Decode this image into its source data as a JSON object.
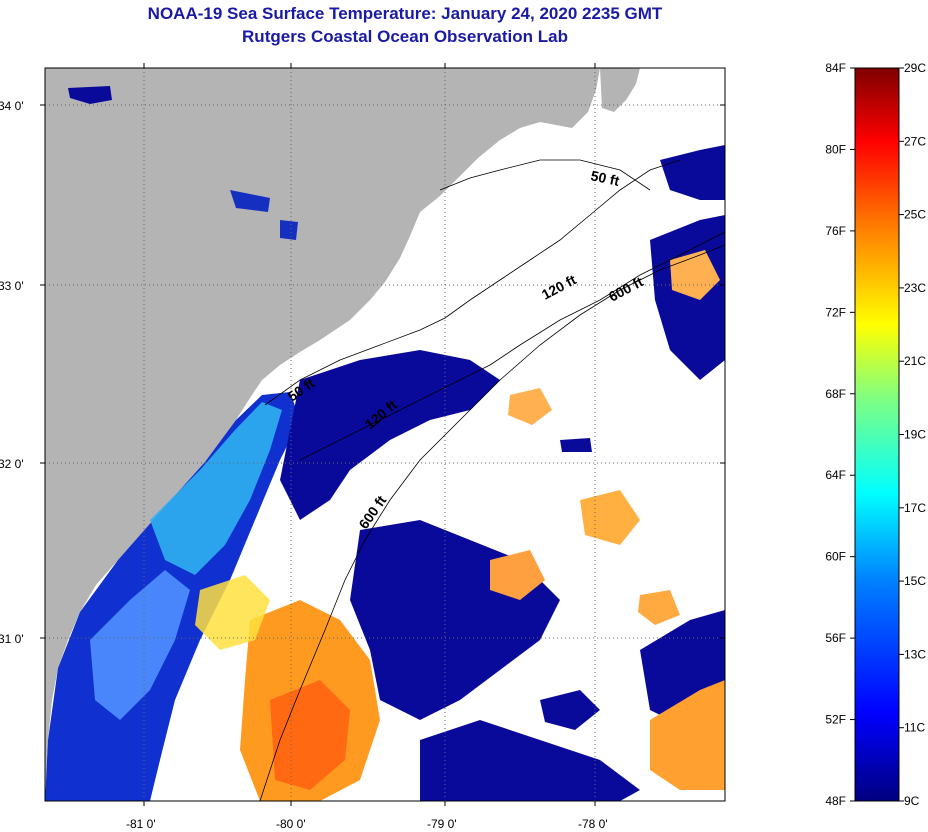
{
  "header": {
    "title": "NOAA-19 Sea Surface Temperature:  January 24, 2020 2235 GMT",
    "subtitle": "Rutgers Coastal Ocean Observation Lab"
  },
  "axes": {
    "lat_labels": [
      "34 0'",
      "33 0'",
      "32 0'",
      "31 0'"
    ],
    "lon_labels": [
      "-81 0'",
      "-80 0'",
      "-79 0'",
      "-78 0'"
    ]
  },
  "contours": {
    "labels": [
      "50 ft",
      "120 ft",
      "600 ft",
      "50 ft",
      "120 ft",
      "600 ft"
    ]
  },
  "colorbar": {
    "fahrenheit": [
      "84F",
      "80F",
      "76F",
      "72F",
      "68F",
      "64F",
      "60F",
      "56F",
      "52F",
      "48F"
    ],
    "celsius": [
      "29C",
      "27C",
      "25C",
      "23C",
      "21C",
      "19C",
      "17C",
      "15C",
      "13C",
      "11C",
      "9C"
    ],
    "colors": [
      "#00007f",
      "#0000ff",
      "#0080ff",
      "#00ffff",
      "#80ff80",
      "#ffff00",
      "#ff8000",
      "#ff0000",
      "#7f0000"
    ]
  },
  "colors": {
    "land": "#b4b4b4",
    "cloud": "#ffffff",
    "title": "#1a1aa6"
  }
}
